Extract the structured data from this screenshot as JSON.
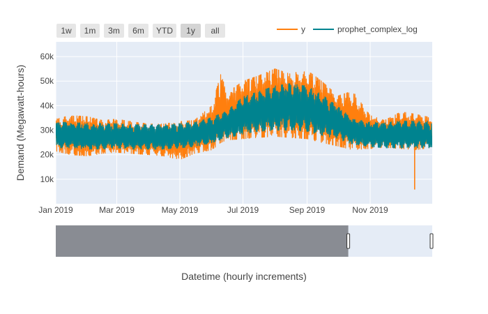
{
  "range_selector": {
    "buttons": [
      "1w",
      "1m",
      "3m",
      "6m",
      "YTD",
      "1y",
      "all"
    ],
    "active": "1y"
  },
  "colors": {
    "y": "#ff7f0e",
    "prophet": "#00838f",
    "plot_bg": "#e5ecf6",
    "rangeslider_mask": "#898c93"
  },
  "chart_data": {
    "type": "line",
    "title": "",
    "xlabel": "Datetime (hourly increments)",
    "ylabel": "Demand (Megawatt-hours)",
    "x_range": [
      "2019-01-01",
      "2019-12-31"
    ],
    "ylim": [
      0,
      66000
    ],
    "y_ticks": [
      10000,
      20000,
      30000,
      40000,
      50000,
      60000
    ],
    "y_tick_labels": [
      "10k",
      "20k",
      "30k",
      "40k",
      "50k",
      "60k"
    ],
    "x_ticks": [
      "2019-01-01",
      "2019-03-01",
      "2019-05-01",
      "2019-07-01",
      "2019-09-01",
      "2019-11-01"
    ],
    "x_tick_labels": [
      "Jan 2019",
      "Mar 2019",
      "May 2019",
      "Jul 2019",
      "Sep 2019",
      "Nov 2019"
    ],
    "legend": "top-right",
    "grid": true,
    "series": [
      {
        "name": "y",
        "envelope": {
          "x": [
            "2019-01-01",
            "2019-01-15",
            "2019-02-01",
            "2019-02-15",
            "2019-03-01",
            "2019-03-15",
            "2019-04-01",
            "2019-04-15",
            "2019-05-01",
            "2019-05-15",
            "2019-06-01",
            "2019-06-10",
            "2019-06-15",
            "2019-07-01",
            "2019-07-15",
            "2019-08-01",
            "2019-08-15",
            "2019-09-01",
            "2019-09-15",
            "2019-10-01",
            "2019-10-15",
            "2019-11-01",
            "2019-11-15",
            "2019-12-01",
            "2019-12-15",
            "2019-12-31"
          ],
          "high": [
            34500,
            36000,
            35500,
            34000,
            34500,
            33500,
            32500,
            32500,
            33500,
            34000,
            40000,
            53500,
            45000,
            50000,
            52000,
            55000,
            53000,
            54500,
            50000,
            44000,
            46000,
            36000,
            34000,
            37500,
            36500,
            35000
          ],
          "low": [
            21500,
            20000,
            19500,
            20500,
            21000,
            20500,
            20000,
            19500,
            18000,
            20500,
            22000,
            25000,
            26000,
            26500,
            27000,
            27500,
            27000,
            26500,
            25000,
            23500,
            22000,
            22500,
            23000,
            22500,
            22000,
            23000
          ]
        },
        "spikes": [
          {
            "x": "2019-12-14",
            "y": 5800
          }
        ]
      },
      {
        "name": "prophet_complex_log",
        "envelope": {
          "x": [
            "2019-01-01",
            "2019-01-15",
            "2019-02-01",
            "2019-02-15",
            "2019-03-01",
            "2019-03-15",
            "2019-04-01",
            "2019-04-15",
            "2019-05-01",
            "2019-05-15",
            "2019-06-01",
            "2019-06-15",
            "2019-07-01",
            "2019-07-15",
            "2019-08-01",
            "2019-08-15",
            "2019-09-01",
            "2019-09-15",
            "2019-10-01",
            "2019-10-15",
            "2019-11-01",
            "2019-11-15",
            "2019-12-01",
            "2019-12-15",
            "2019-12-31"
          ],
          "high": [
            33500,
            33500,
            33000,
            33000,
            33000,
            32500,
            32500,
            32500,
            33000,
            33500,
            35500,
            38000,
            44000,
            46000,
            48500,
            49500,
            48500,
            45000,
            40000,
            35000,
            33500,
            33500,
            34000,
            34000,
            34000
          ],
          "low": [
            22500,
            22500,
            22000,
            22000,
            22500,
            22000,
            22000,
            22000,
            22500,
            23000,
            24500,
            26500,
            28000,
            29000,
            29500,
            29500,
            29000,
            27500,
            26000,
            24000,
            23000,
            22500,
            22500,
            22500,
            22500
          ]
        }
      }
    ],
    "rangeslider": {
      "selected_start": "2019-12-31",
      "full_end": "2020-12-31"
    }
  }
}
